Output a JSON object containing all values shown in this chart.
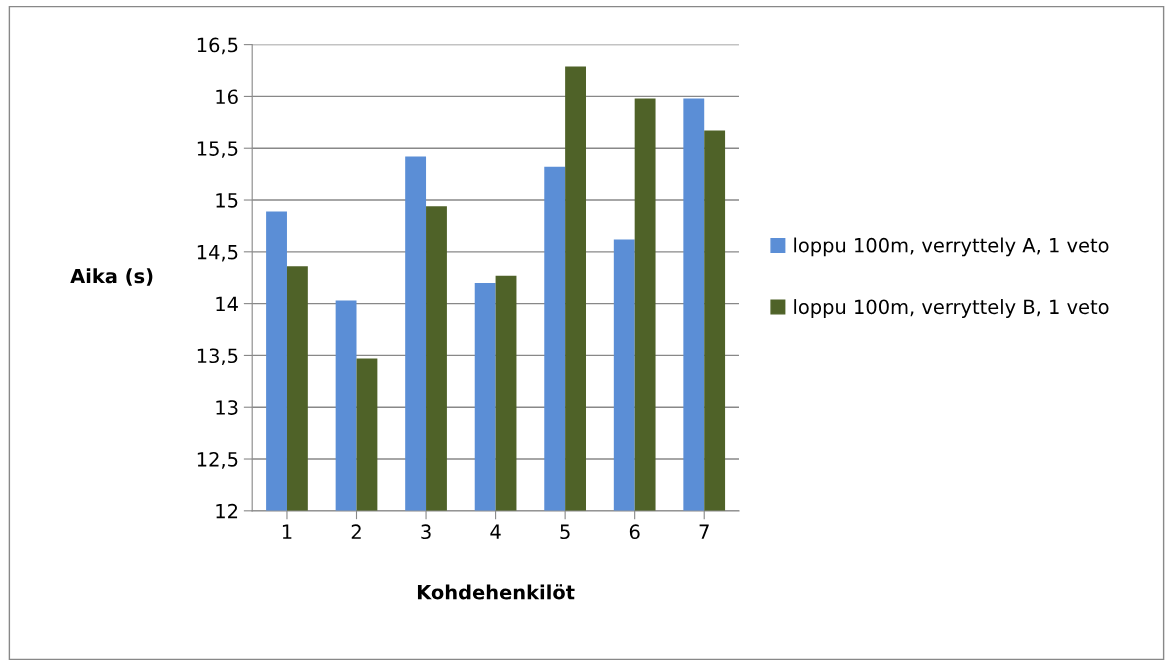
{
  "chart_data": {
    "type": "bar",
    "categories": [
      "1",
      "2",
      "3",
      "4",
      "5",
      "6",
      "7"
    ],
    "series": [
      {
        "name": "loppu 100m, verryttely A, 1 veto",
        "color": "#5b8ed6",
        "values": [
          14.89,
          14.03,
          15.42,
          14.2,
          15.32,
          14.62,
          15.98
        ]
      },
      {
        "name": "loppu 100m, verryttely B, 1 veto",
        "color": "#4f6228",
        "values": [
          14.36,
          13.47,
          14.94,
          14.27,
          16.29,
          15.98,
          15.67
        ]
      }
    ],
    "xlabel": "Kohdehenkilöt",
    "ylabel": "Aika (s)",
    "ylim": [
      12,
      16.5
    ],
    "yticks": [
      12,
      {
        "value": 12.5,
        "label": "12,5"
      },
      13,
      {
        "value": 13.5,
        "label": "13,5"
      },
      14,
      {
        "value": 14.5,
        "label": "14,5"
      },
      15,
      {
        "value": 15.5,
        "label": "15,5"
      },
      16,
      {
        "value": 16.5,
        "label": "16,5"
      }
    ],
    "grid": "y",
    "legend": "right"
  }
}
